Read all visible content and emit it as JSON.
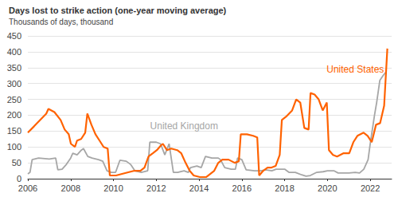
{
  "chart_data": {
    "type": "line",
    "title": "Days lost to strike action (one-year moving average)",
    "subtitle": "Thousands of days, thousand",
    "xlim": [
      2006,
      2023
    ],
    "xticks": [
      2006,
      2008,
      2010,
      2012,
      2014,
      2016,
      2018,
      2020,
      2022
    ],
    "ylim": [
      0,
      450
    ],
    "yticks": [
      0,
      50,
      100,
      150,
      200,
      250,
      300,
      350,
      400,
      450
    ],
    "grid": true,
    "series": [
      {
        "name": "United States",
        "color": "#ff6200",
        "x": [
          2006.0,
          2006.29,
          2006.57,
          2006.86,
          2006.96,
          2007.24,
          2007.53,
          2007.72,
          2007.91,
          2008.01,
          2008.2,
          2008.3,
          2008.49,
          2008.68,
          2008.78,
          2008.97,
          2009.16,
          2009.35,
          2009.54,
          2009.73,
          2009.83,
          2010.12,
          2010.4,
          2010.69,
          2010.98,
          2011.26,
          2011.45,
          2011.64,
          2011.84,
          2012.03,
          2012.22,
          2012.31,
          2012.5,
          2012.7,
          2012.98,
          2013.17,
          2013.37,
          2013.56,
          2013.75,
          2014.04,
          2014.33,
          2014.52,
          2014.71,
          2014.9,
          2015.09,
          2015.38,
          2015.67,
          2015.86,
          2015.95,
          2016.24,
          2016.53,
          2016.72,
          2016.81,
          2017.0,
          2017.2,
          2017.39,
          2017.58,
          2017.77,
          2017.87,
          2018.06,
          2018.35,
          2018.54,
          2018.73,
          2018.92,
          2019.12,
          2019.21,
          2019.4,
          2019.59,
          2019.78,
          2019.97,
          2020.07,
          2020.26,
          2020.45,
          2020.74,
          2021.02,
          2021.21,
          2021.4,
          2021.69,
          2021.88,
          2022.07,
          2022.27,
          2022.46,
          2022.65,
          2022.8
        ],
        "values": [
          145,
          165,
          185,
          205,
          220,
          210,
          185,
          155,
          140,
          110,
          100,
          120,
          125,
          145,
          205,
          170,
          140,
          120,
          100,
          95,
          10,
          10,
          15,
          20,
          25,
          25,
          35,
          70,
          80,
          90,
          105,
          110,
          90,
          95,
          90,
          80,
          50,
          25,
          10,
          5,
          5,
          15,
          25,
          50,
          60,
          60,
          50,
          55,
          140,
          140,
          135,
          130,
          10,
          25,
          35,
          35,
          40,
          75,
          185,
          195,
          215,
          250,
          240,
          160,
          155,
          270,
          265,
          250,
          215,
          240,
          90,
          75,
          70,
          80,
          80,
          115,
          135,
          145,
          135,
          115,
          170,
          175,
          230,
          410
        ]
      },
      {
        "name": "United Kingdom",
        "color": "#a6a6a6",
        "x": [
          2006.0,
          2006.1,
          2006.2,
          2006.5,
          2007.0,
          2007.3,
          2007.4,
          2007.6,
          2007.8,
          2008.0,
          2008.1,
          2008.3,
          2008.5,
          2008.6,
          2008.8,
          2009.0,
          2009.3,
          2009.5,
          2009.7,
          2009.9,
          2010.1,
          2010.3,
          2010.6,
          2010.8,
          2011.0,
          2011.3,
          2011.6,
          2011.7,
          2012.0,
          2012.2,
          2012.4,
          2012.6,
          2012.8,
          2013.0,
          2013.3,
          2013.5,
          2013.6,
          2013.9,
          2014.1,
          2014.3,
          2014.6,
          2014.9,
          2015.0,
          2015.2,
          2015.5,
          2015.7,
          2015.8,
          2016.0,
          2016.2,
          2016.6,
          2016.9,
          2017.1,
          2017.4,
          2017.6,
          2017.9,
          2018.0,
          2018.2,
          2018.5,
          2018.8,
          2019.0,
          2019.2,
          2019.5,
          2019.8,
          2020.0,
          2020.3,
          2020.5,
          2020.8,
          2021.0,
          2021.3,
          2021.5,
          2021.7,
          2021.9,
          2022.0,
          2022.2,
          2022.3,
          2022.45,
          2022.6,
          2022.72
        ],
        "values": [
          15,
          20,
          60,
          65,
          62,
          65,
          28,
          30,
          45,
          65,
          80,
          75,
          90,
          95,
          70,
          65,
          60,
          55,
          25,
          20,
          20,
          58,
          55,
          45,
          25,
          20,
          25,
          115,
          115,
          110,
          75,
          110,
          20,
          20,
          25,
          20,
          35,
          40,
          35,
          70,
          65,
          65,
          60,
          35,
          30,
          30,
          65,
          60,
          28,
          25,
          25,
          28,
          25,
          30,
          30,
          30,
          20,
          20,
          12,
          8,
          10,
          20,
          22,
          25,
          25,
          18,
          18,
          18,
          20,
          18,
          30,
          60,
          110,
          200,
          240,
          310,
          325,
          335
        ]
      }
    ]
  }
}
